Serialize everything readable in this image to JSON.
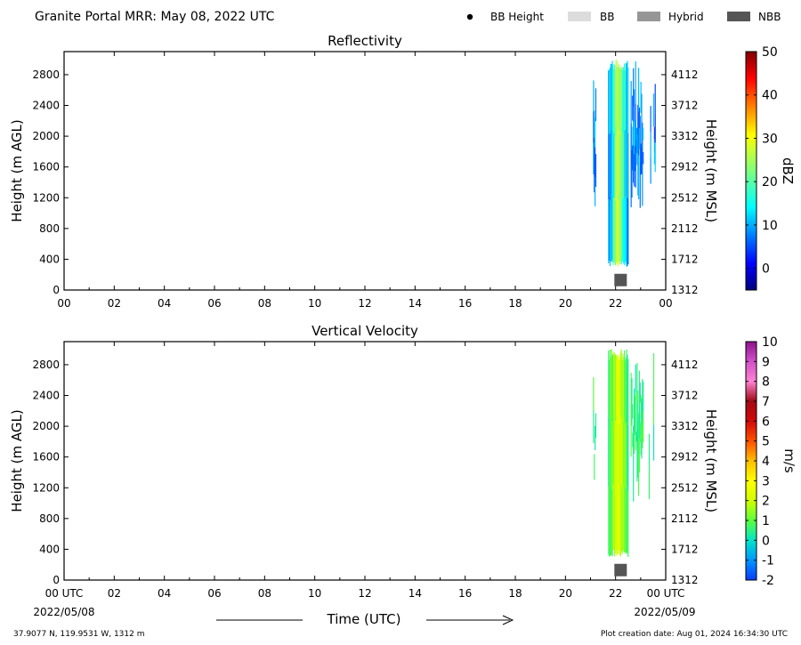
{
  "header": {
    "title": "Granite Portal MRR:  May 08, 2022 UTC",
    "legend": [
      {
        "label": "BB Height",
        "kind": "dot",
        "color": "#000000"
      },
      {
        "label": "BB",
        "kind": "box",
        "color": "#dcdcdc"
      },
      {
        "label": "Hybrid",
        "kind": "box",
        "color": "#969696"
      },
      {
        "label": "NBB",
        "kind": "box",
        "color": "#555555"
      }
    ]
  },
  "footer": {
    "location": "37.9077 N, 119.9531 W, 1312 m",
    "creation": "Plot creation date: Aug 01, 2024 16:34:30 UTC",
    "time_label": "Time (UTC)",
    "date_start": "2022/05/08",
    "date_end": "2022/05/09"
  },
  "chart_data": [
    {
      "type": "heatmap",
      "title": "Reflectivity",
      "ylabel": "Height (m AGL)",
      "ylabel_right": "Height (m MSL)",
      "colorbar_label": "dBZ",
      "x_ticks": [
        "00",
        "02",
        "04",
        "06",
        "08",
        "10",
        "12",
        "14",
        "16",
        "18",
        "20",
        "22",
        "00"
      ],
      "y_ticks": [
        0,
        400,
        800,
        1200,
        1600,
        2000,
        2400,
        2800
      ],
      "y_ticks_right": [
        1312,
        1712,
        2112,
        2512,
        2912,
        3312,
        3712,
        4112
      ],
      "xlim_hours": [
        0,
        24
      ],
      "ylim": [
        0,
        3100
      ],
      "colorbar_range": [
        -5,
        50
      ],
      "colorbar_ticks": [
        0,
        10,
        20,
        30,
        40,
        50
      ],
      "colormap": "jet",
      "data_extent": {
        "time_hours": [
          21.1,
          23.85
        ],
        "height_m": [
          300,
          3000
        ],
        "approx_value_range": [
          0,
          28
        ]
      },
      "bright_band": [
        {
          "class": "NBB",
          "time_hours": 22.2,
          "height_m": 130
        }
      ]
    },
    {
      "type": "heatmap",
      "title": "Vertical Velocity",
      "ylabel": "Height (m AGL)",
      "ylabel_right": "Height (m MSL)",
      "colorbar_label": "m/s",
      "x_ticks": [
        "00 UTC",
        "02",
        "04",
        "06",
        "08",
        "10",
        "12",
        "14",
        "16",
        "18",
        "20",
        "22",
        "00 UTC"
      ],
      "y_ticks": [
        0,
        400,
        800,
        1200,
        1600,
        2000,
        2400,
        2800
      ],
      "y_ticks_right": [
        1312,
        1712,
        2112,
        2512,
        2912,
        3312,
        3712,
        4112
      ],
      "xlim_hours": [
        0,
        24
      ],
      "ylim": [
        0,
        3100
      ],
      "colorbar_range": [
        -2,
        10
      ],
      "colorbar_ticks": [
        -2,
        -1,
        0,
        1,
        2,
        3,
        4,
        5,
        6,
        7,
        8,
        9,
        10
      ],
      "data_extent": {
        "time_hours": [
          21.1,
          23.85
        ],
        "height_m": [
          300,
          3000
        ],
        "approx_value_range": [
          -0.5,
          2.5
        ]
      },
      "bright_band": [
        {
          "class": "NBB",
          "time_hours": 22.2,
          "height_m": 130
        }
      ]
    }
  ]
}
